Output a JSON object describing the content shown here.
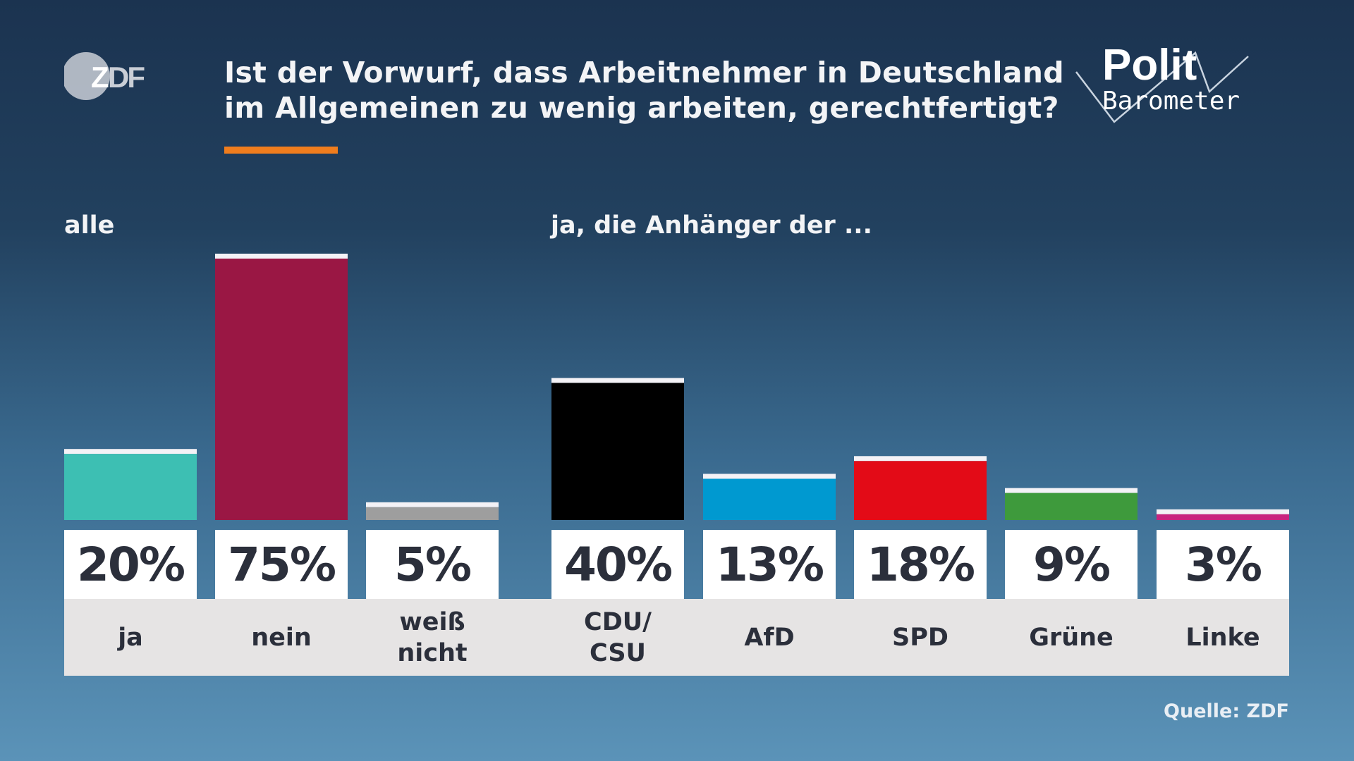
{
  "logo_text": "ZDF",
  "title": "Ist der Vorwurf, dass Arbeitnehmer in Deutschland im Allgemeinen zu wenig arbeiten, gerechtfertigt?",
  "title_lines": [
    "Ist der Vorwurf, dass Arbeitnehmer in Deutschland",
    "im Allgemeinen zu wenig arbeiten, gerechtfertigt?"
  ],
  "brand": {
    "line1": "Polit",
    "line2": "Barometer"
  },
  "accent_color": "#f07d1d",
  "source": "Quelle: ZDF",
  "chart_data": {
    "type": "bar",
    "unit": "%",
    "groups": [
      {
        "label": "alle",
        "categories": [
          "ja",
          "nein",
          "weiß\nnicht"
        ],
        "values": [
          20,
          75,
          5
        ],
        "value_labels": [
          "20%",
          "75%",
          "5%"
        ],
        "colors": [
          "#3dbfb3",
          "#9a1744",
          "#9e9e9e"
        ]
      },
      {
        "label": "ja, die Anhänger der ...",
        "categories": [
          "CDU/\nCSU",
          "AfD",
          "SPD",
          "Grüne",
          "Linke"
        ],
        "values": [
          40,
          13,
          18,
          9,
          3
        ],
        "value_labels": [
          "40%",
          "13%",
          "18%",
          "9%",
          "3%"
        ],
        "colors": [
          "#000000",
          "#0099d0",
          "#e30b17",
          "#3e9a3c",
          "#c9237f"
        ]
      }
    ]
  }
}
